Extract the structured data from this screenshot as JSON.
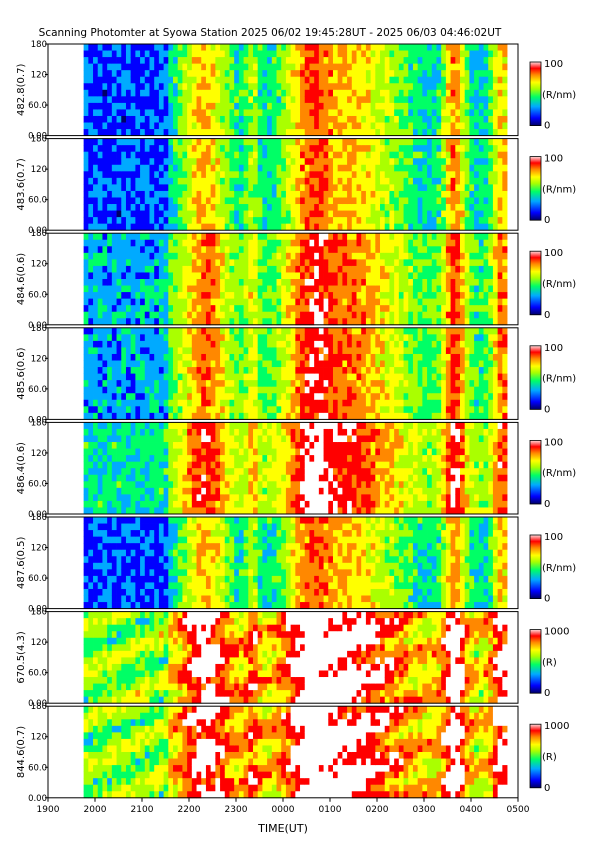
{
  "chart_data": {
    "type": "heatmap",
    "title": "Scanning Photomter at Syowa Station  2025 06/02 19:45:28UT - 2025 06/03 04:46:02UT",
    "xlabel": "TIME(UT)",
    "x_tick_labels": [
      "1900",
      "2000",
      "2100",
      "2200",
      "2300",
      "0000",
      "0100",
      "0200",
      "0300",
      "0400",
      "0500"
    ],
    "x_range_hours": [
      19.0,
      29.0
    ],
    "data_start_hour": 19.758,
    "data_end_hour": 28.767,
    "y_tick_labels": [
      "0.00",
      "60.0",
      "120",
      "180"
    ],
    "y_range": [
      0,
      180
    ],
    "colormap": [
      "#000066",
      "#0000ff",
      "#00aaff",
      "#00ff66",
      "#aaff00",
      "#ffff00",
      "#ff8800",
      "#ff0000",
      "#ffffff"
    ],
    "panels": [
      {
        "label": "482.8(0.7)",
        "scale_max": "100",
        "scale_min": "0",
        "unit": "(R/nm)",
        "intensity": "low"
      },
      {
        "label": "483.6(0.7)",
        "scale_max": "100",
        "scale_min": "0",
        "unit": "(R/nm)",
        "intensity": "low"
      },
      {
        "label": "484.6(0.6)",
        "scale_max": "100",
        "scale_min": "0",
        "unit": "(R/nm)",
        "intensity": "medium"
      },
      {
        "label": "485.6(0.6)",
        "scale_max": "100",
        "scale_min": "0",
        "unit": "(R/nm)",
        "intensity": "medium"
      },
      {
        "label": "486.4(0.6)",
        "scale_max": "100",
        "scale_min": "0",
        "unit": "(R/nm)",
        "intensity": "high"
      },
      {
        "label": "487.6(0.5)",
        "scale_max": "100",
        "scale_min": "0",
        "unit": "(R/nm)",
        "intensity": "low"
      },
      {
        "label": "670.5(4.3)",
        "scale_max": "1000",
        "scale_min": "0",
        "unit": "(R)",
        "intensity": "very-high"
      },
      {
        "label": "844.6(0.7)",
        "scale_max": "1000",
        "scale_min": "0",
        "unit": "(R)",
        "intensity": "very-high"
      }
    ]
  }
}
